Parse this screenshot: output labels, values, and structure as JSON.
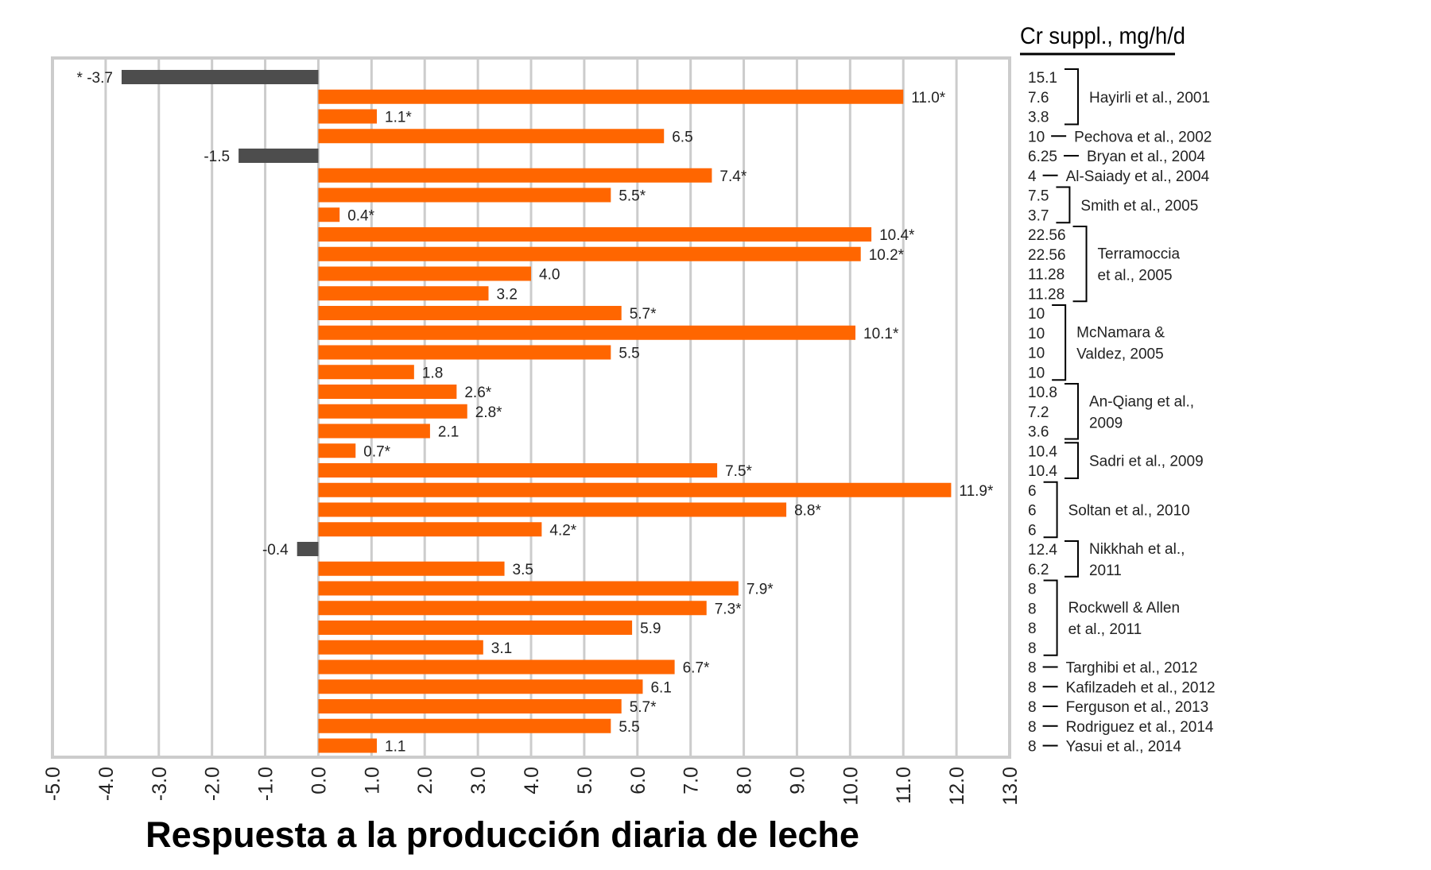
{
  "chart_data": {
    "type": "bar",
    "orientation": "horizontal",
    "xlabel": "Respuesta a la producción diaria de leche",
    "xlim": [
      -5.0,
      13.0
    ],
    "xticks": [
      "-5.0",
      "-4.0",
      "-3.0",
      "-2.0",
      "-1.0",
      "0.0",
      "1.0",
      "2.0",
      "3.0",
      "4.0",
      "5.0",
      "6.0",
      "7.0",
      "8.0",
      "9.0",
      "10.0",
      "11.0",
      "12.0",
      "13.0"
    ],
    "grid": true,
    "colors": {
      "positive": "#ff6600",
      "negative": "#4d4d4d",
      "grid": "#cccccc"
    },
    "right_title": "Cr suppl., mg/h/d",
    "bars": [
      {
        "value": -3.7,
        "label": "* -3.7",
        "dose": "15.1"
      },
      {
        "value": 11.0,
        "label": "11.0*",
        "dose": "7.6"
      },
      {
        "value": 1.1,
        "label": "1.1*",
        "dose": "3.8"
      },
      {
        "value": 6.5,
        "label": "6.5",
        "dose": "10"
      },
      {
        "value": -1.5,
        "label": "-1.5",
        "dose": "6.25"
      },
      {
        "value": 7.4,
        "label": "7.4*",
        "dose": "4"
      },
      {
        "value": 5.5,
        "label": "5.5*",
        "dose": "7.5"
      },
      {
        "value": 0.4,
        "label": "0.4*",
        "dose": "3.7"
      },
      {
        "value": 10.4,
        "label": "10.4*",
        "dose": "22.56"
      },
      {
        "value": 10.2,
        "label": "10.2*",
        "dose": "22.56"
      },
      {
        "value": 4.0,
        "label": "4.0",
        "dose": "11.28"
      },
      {
        "value": 3.2,
        "label": "3.2",
        "dose": "11.28"
      },
      {
        "value": 5.7,
        "label": "5.7*",
        "dose": "10"
      },
      {
        "value": 10.1,
        "label": "10.1*",
        "dose": "10"
      },
      {
        "value": 5.5,
        "label": "5.5",
        "dose": "10"
      },
      {
        "value": 1.8,
        "label": "1.8",
        "dose": "10"
      },
      {
        "value": 2.6,
        "label": "2.6*",
        "dose": "10.8"
      },
      {
        "value": 2.8,
        "label": "2.8*",
        "dose": "7.2"
      },
      {
        "value": 2.1,
        "label": "2.1",
        "dose": "3.6"
      },
      {
        "value": 0.7,
        "label": "0.7*",
        "dose": "10.4"
      },
      {
        "value": 7.5,
        "label": "7.5*",
        "dose": "10.4"
      },
      {
        "value": 11.9,
        "label": "11.9*",
        "dose": "6"
      },
      {
        "value": 8.8,
        "label": "8.8*",
        "dose": "6"
      },
      {
        "value": 4.2,
        "label": "4.2*",
        "dose": "6"
      },
      {
        "value": -0.4,
        "label": "-0.4",
        "dose": "12.4"
      },
      {
        "value": 3.5,
        "label": "3.5",
        "dose": "6.2"
      },
      {
        "value": 7.9,
        "label": "7.9*",
        "dose": "8"
      },
      {
        "value": 7.3,
        "label": "7.3*",
        "dose": "8"
      },
      {
        "value": 5.9,
        "label": "5.9",
        "dose": "8"
      },
      {
        "value": 3.1,
        "label": "3.1",
        "dose": "8"
      },
      {
        "value": 6.7,
        "label": "6.7*",
        "dose": "8"
      },
      {
        "value": 6.1,
        "label": "6.1",
        "dose": "8"
      },
      {
        "value": 5.7,
        "label": "5.7*",
        "dose": "8"
      },
      {
        "value": 5.5,
        "label": "5.5",
        "dose": "8"
      },
      {
        "value": 1.1,
        "label": "1.1",
        "dose": "8"
      }
    ],
    "studies": [
      {
        "first": 0,
        "last": 2,
        "lines": [
          "Hayirli et al., 2001"
        ]
      },
      {
        "first": 3,
        "last": 3,
        "lines": [
          "Pechova et al., 2002"
        ]
      },
      {
        "first": 4,
        "last": 4,
        "lines": [
          "Bryan et al., 2004"
        ]
      },
      {
        "first": 5,
        "last": 5,
        "lines": [
          "Al-Saiady et al., 2004"
        ]
      },
      {
        "first": 6,
        "last": 7,
        "lines": [
          "Smith et al., 2005"
        ]
      },
      {
        "first": 8,
        "last": 11,
        "lines": [
          "Terramoccia",
          "et al., 2005"
        ]
      },
      {
        "first": 12,
        "last": 15,
        "lines": [
          "McNamara &",
          "Valdez, 2005"
        ]
      },
      {
        "first": 16,
        "last": 18,
        "lines": [
          "An-Qiang et al.,",
          "2009"
        ]
      },
      {
        "first": 19,
        "last": 20,
        "lines": [
          "Sadri et al., 2009"
        ]
      },
      {
        "first": 21,
        "last": 23,
        "lines": [
          "Soltan et al., 2010"
        ]
      },
      {
        "first": 24,
        "last": 25,
        "lines": [
          "Nikkhah et al.,",
          "2011"
        ]
      },
      {
        "first": 26,
        "last": 29,
        "lines": [
          "Rockwell & Allen",
          "et al., 2011"
        ]
      },
      {
        "first": 30,
        "last": 30,
        "lines": [
          "Targhibi et al., 2012"
        ]
      },
      {
        "first": 31,
        "last": 31,
        "lines": [
          "Kafilzadeh et al., 2012"
        ]
      },
      {
        "first": 32,
        "last": 32,
        "lines": [
          "Ferguson et al., 2013"
        ]
      },
      {
        "first": 33,
        "last": 33,
        "lines": [
          "Rodriguez et al., 2014"
        ]
      },
      {
        "first": 34,
        "last": 34,
        "lines": [
          "Yasui et al., 2014"
        ]
      }
    ]
  }
}
